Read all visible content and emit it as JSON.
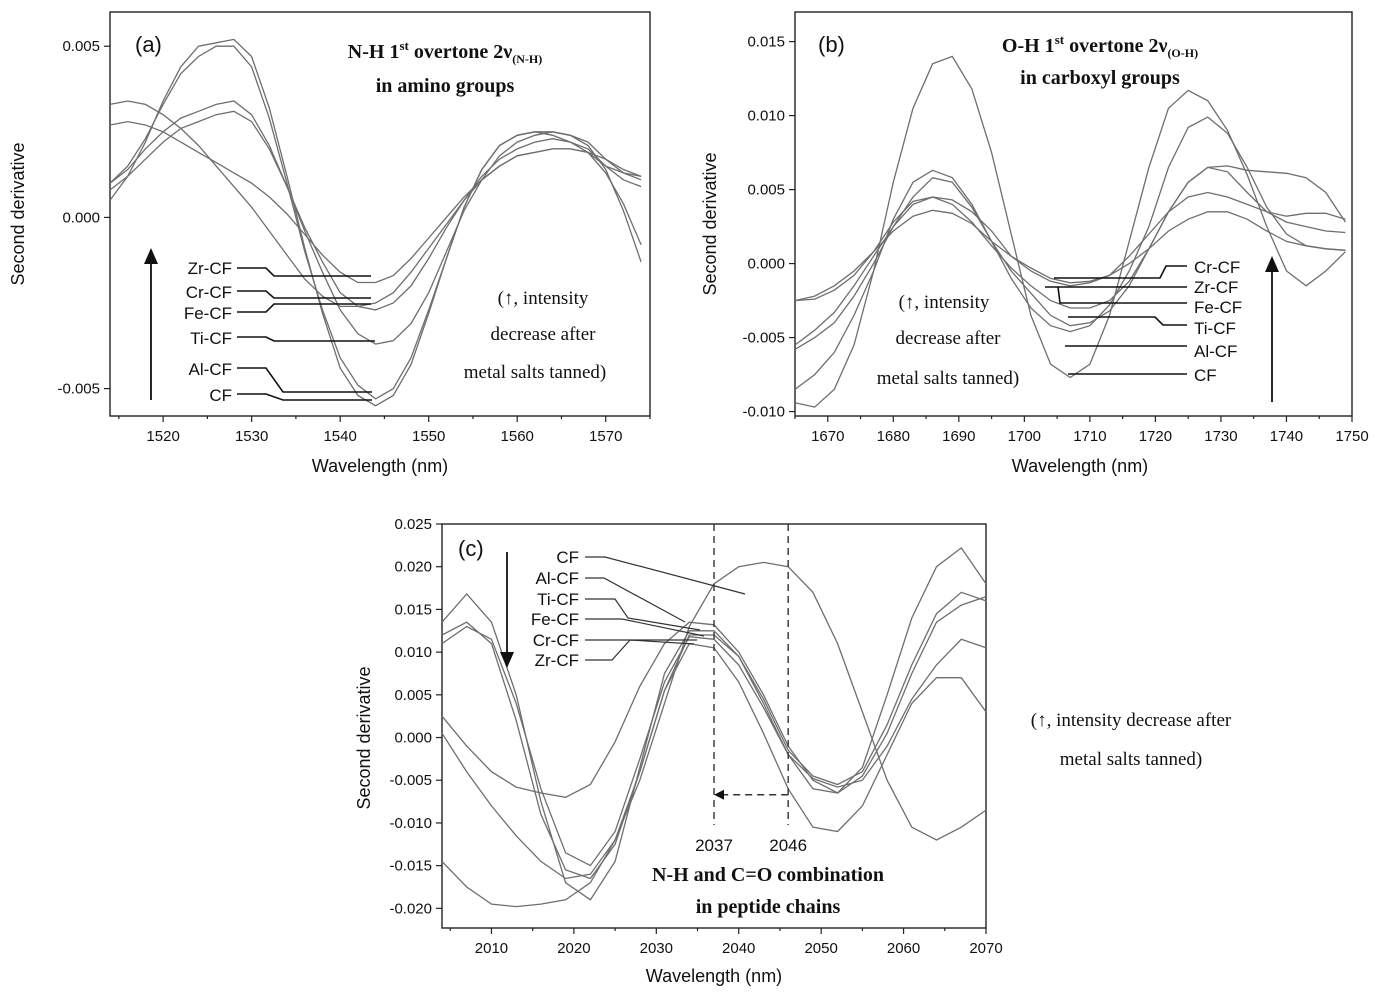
{
  "figure": {
    "tanning_note": {
      "line1": "(↑, intensity decrease after",
      "line2": "metal salts tanned)"
    }
  },
  "chart_data": [
    {
      "type": "line",
      "panel": "(a)",
      "title_lines": [
        "N-H 1st overtone 2ν(N-H)",
        "in amino groups"
      ],
      "title_main": "N-H 1",
      "title_sup": "st",
      "title_mid": " overtone 2ν",
      "title_sub": "(N-H)",
      "title_line2": "in amino groups",
      "xlabel": "Wavelength (nm)",
      "ylabel": "Second derivative",
      "xlim": [
        1514,
        1575
      ],
      "ylim": [
        -0.0058,
        0.006
      ],
      "xticks": [
        1520,
        1530,
        1540,
        1550,
        1560,
        1570
      ],
      "yticks": [
        0.005,
        0.0,
        -0.005
      ],
      "ytick_labels": [
        "0.005",
        "0.000",
        "-0.005"
      ],
      "annotation": [
        "(↑, intensity",
        "decrease after",
        "metal salts tanned)"
      ],
      "arrow_direction": "up",
      "legend_order": [
        "Zr-CF",
        "Cr-CF",
        "Fe-CF",
        "Ti-CF",
        "Al-CF",
        "CF"
      ],
      "x": [
        1514,
        1516,
        1518,
        1520,
        1522,
        1524,
        1526,
        1528,
        1530,
        1532,
        1534,
        1536,
        1538,
        1540,
        1542,
        1544,
        1546,
        1548,
        1550,
        1552,
        1554,
        1556,
        1558,
        1560,
        1562,
        1564,
        1566,
        1568,
        1570,
        1572,
        1574
      ],
      "series": [
        {
          "name": "CF",
          "values": [
            0.0005,
            0.0012,
            0.0022,
            0.0034,
            0.0044,
            0.005,
            0.0051,
            0.0052,
            0.0047,
            0.0032,
            0.0012,
            -0.0009,
            -0.0028,
            -0.0044,
            -0.0052,
            -0.0055,
            -0.0052,
            -0.0043,
            -0.0028,
            -0.0012,
            0.0003,
            0.0014,
            0.0021,
            0.0024,
            0.0025,
            0.0025,
            0.0024,
            0.0021,
            0.0014,
            0.0002,
            -0.0013
          ]
        },
        {
          "name": "Al-CF",
          "values": [
            0.001,
            0.0015,
            0.0023,
            0.0033,
            0.0042,
            0.0047,
            0.005,
            0.005,
            0.0044,
            0.0029,
            0.001,
            -0.001,
            -0.0027,
            -0.0041,
            -0.0049,
            -0.0053,
            -0.005,
            -0.0041,
            -0.0027,
            -0.0012,
            0.0003,
            0.0014,
            0.0021,
            0.0024,
            0.0025,
            0.0024,
            0.0022,
            0.0019,
            0.0013,
            0.0004,
            -0.0008
          ]
        },
        {
          "name": "Ti-CF",
          "values": [
            0.001,
            0.0014,
            0.002,
            0.0025,
            0.0029,
            0.0031,
            0.0033,
            0.0034,
            0.003,
            0.0021,
            0.0009,
            -0.0004,
            -0.0016,
            -0.0027,
            -0.0034,
            -0.0037,
            -0.0036,
            -0.0031,
            -0.0022,
            -0.001,
            0.0002,
            0.0011,
            0.0018,
            0.0022,
            0.0024,
            0.0025,
            0.0024,
            0.0022,
            0.0017,
            0.0013,
            0.0011
          ]
        },
        {
          "name": "Fe-CF",
          "values": [
            0.0008,
            0.0012,
            0.0017,
            0.0022,
            0.0026,
            0.0028,
            0.003,
            0.0031,
            0.0028,
            0.002,
            0.0009,
            -0.0003,
            -0.0013,
            -0.0022,
            -0.0026,
            -0.0027,
            -0.0025,
            -0.002,
            -0.0012,
            -0.0003,
            0.0005,
            0.0012,
            0.0017,
            0.002,
            0.0022,
            0.0023,
            0.0022,
            0.002,
            0.0015,
            0.0013,
            0.0012
          ]
        },
        {
          "name": "Cr-CF",
          "values": [
            0.0033,
            0.0034,
            0.0033,
            0.003,
            0.0026,
            0.0021,
            0.0015,
            0.0009,
            0.0003,
            -0.0004,
            -0.0011,
            -0.0018,
            -0.0023,
            -0.0026,
            -0.0026,
            -0.0025,
            -0.0022,
            -0.0016,
            -0.0009,
            -0.0002,
            0.0005,
            0.0011,
            0.0015,
            0.0018,
            0.0019,
            0.002,
            0.002,
            0.0019,
            0.0017,
            0.0014,
            0.0012
          ]
        },
        {
          "name": "Zr-CF",
          "values": [
            0.0027,
            0.0028,
            0.0027,
            0.0025,
            0.0022,
            0.0019,
            0.0016,
            0.0013,
            0.001,
            0.0006,
            0.0001,
            -0.0005,
            -0.0011,
            -0.0016,
            -0.0019,
            -0.0019,
            -0.0017,
            -0.0012,
            -0.0006,
            0.0,
            0.0006,
            0.0011,
            0.0015,
            0.0018,
            0.0019,
            0.002,
            0.002,
            0.0019,
            0.0015,
            0.0011,
            0.0009
          ]
        }
      ]
    },
    {
      "type": "line",
      "panel": "(b)",
      "title_main": "O-H 1",
      "title_sup": "st",
      "title_mid": " overtone 2ν",
      "title_sub": "(O-H)",
      "title_line2": "in carboxyl groups",
      "xlabel": "Wavelength (nm)",
      "ylabel": "Second derivative",
      "xlim": [
        1665,
        1750
      ],
      "ylim": [
        -0.0103,
        0.017
      ],
      "xticks": [
        1670,
        1680,
        1690,
        1700,
        1710,
        1720,
        1730,
        1740,
        1750
      ],
      "yticks": [
        0.015,
        0.01,
        0.005,
        0.0,
        -0.005,
        -0.01
      ],
      "ytick_labels": [
        "0.015",
        "0.010",
        "0.005",
        "0.000",
        "-0.005",
        "-0.010"
      ],
      "annotation": [
        "(↑, intensity",
        "decrease after",
        "metal salts tanned)"
      ],
      "arrow_direction": "up",
      "legend_order": [
        "Cr-CF",
        "Zr-CF",
        "Fe-CF",
        "Ti-CF",
        "Al-CF",
        "CF"
      ],
      "x": [
        1665,
        1668,
        1671,
        1674,
        1677,
        1680,
        1683,
        1686,
        1689,
        1692,
        1695,
        1698,
        1701,
        1704,
        1707,
        1710,
        1713,
        1716,
        1719,
        1722,
        1725,
        1728,
        1731,
        1734,
        1737,
        1740,
        1743,
        1746,
        1749
      ],
      "series": [
        {
          "name": "CF",
          "values": [
            -0.0094,
            -0.0097,
            -0.0085,
            -0.0055,
            -0.0005,
            0.0055,
            0.0105,
            0.0135,
            0.014,
            0.0118,
            0.0075,
            0.002,
            -0.0035,
            -0.0068,
            -0.0077,
            -0.0068,
            -0.0035,
            0.0015,
            0.0065,
            0.0105,
            0.0117,
            0.011,
            0.009,
            0.006,
            0.0025,
            -0.0005,
            -0.0015,
            -0.0005,
            0.0008
          ]
        },
        {
          "name": "Al-CF",
          "values": [
            -0.0085,
            -0.0075,
            -0.006,
            -0.0035,
            -0.0005,
            0.003,
            0.0055,
            0.0063,
            0.0058,
            0.004,
            0.0015,
            -0.001,
            -0.003,
            -0.0042,
            -0.0046,
            -0.0042,
            -0.0028,
            -0.0005,
            0.0025,
            0.0065,
            0.0092,
            0.0099,
            0.0088,
            0.0065,
            0.0038,
            0.002,
            0.0012,
            0.001,
            0.0009
          ]
        },
        {
          "name": "Ti-CF",
          "values": [
            -0.0058,
            -0.005,
            -0.004,
            -0.0022,
            0.0,
            0.0025,
            0.0045,
            0.0058,
            0.0055,
            0.0038,
            0.0015,
            -0.0005,
            -0.002,
            -0.0035,
            -0.0042,
            -0.004,
            -0.0032,
            -0.0015,
            0.001,
            0.0035,
            0.0055,
            0.0065,
            0.0062,
            0.0048,
            0.0035,
            0.0028,
            0.0025,
            0.0022,
            0.0021
          ]
        },
        {
          "name": "Fe-CF",
          "values": [
            -0.0055,
            -0.0045,
            -0.0033,
            -0.0015,
            0.0005,
            0.0025,
            0.004,
            0.0045,
            0.004,
            0.0028,
            0.0012,
            -0.0003,
            -0.0015,
            -0.0025,
            -0.003,
            -0.003,
            -0.0025,
            -0.0012,
            0.001,
            0.0035,
            0.0055,
            0.0065,
            0.0066,
            0.0063,
            0.0062,
            0.0061,
            0.0058,
            0.0048,
            0.0028
          ]
        },
        {
          "name": "Cr-CF",
          "values": [
            -0.0025,
            -0.0024,
            -0.0018,
            -0.0008,
            0.0008,
            0.0028,
            0.0042,
            0.0045,
            0.0043,
            0.0035,
            0.0022,
            0.0005,
            -0.0005,
            -0.0012,
            -0.0015,
            -0.0013,
            -0.0008,
            0.0005,
            0.002,
            0.0035,
            0.0045,
            0.0048,
            0.0045,
            0.004,
            0.0035,
            0.0032,
            0.0034,
            0.0034,
            0.003
          ]
        },
        {
          "name": "Zr-CF",
          "values": [
            -0.0025,
            -0.0022,
            -0.0015,
            -0.0005,
            0.0008,
            0.0022,
            0.0032,
            0.0036,
            0.0034,
            0.0027,
            0.0015,
            0.0005,
            -0.0003,
            -0.001,
            -0.0013,
            -0.0012,
            -0.0008,
            0.0,
            0.001,
            0.0022,
            0.003,
            0.0035,
            0.0035,
            0.003,
            0.0022,
            0.0015,
            0.0012,
            0.001,
            0.0009
          ]
        }
      ]
    },
    {
      "type": "line",
      "panel": "(c)",
      "title_line1": "N-H and C=O combination",
      "title_line2": "in peptide chains",
      "xlabel": "Wavelength (nm)",
      "ylabel": "Second derivative",
      "xlim": [
        2004,
        2070
      ],
      "ylim": [
        -0.0223,
        0.025
      ],
      "xticks": [
        2010,
        2020,
        2030,
        2040,
        2050,
        2060,
        2070
      ],
      "yticks": [
        0.025,
        0.02,
        0.015,
        0.01,
        0.005,
        0.0,
        -0.005,
        -0.01,
        -0.015,
        -0.02
      ],
      "ytick_labels": [
        "0.025",
        "0.020",
        "0.015",
        "0.010",
        "0.005",
        "0.000",
        "-0.005",
        "-0.010",
        "-0.015",
        "-0.020"
      ],
      "markers": [
        {
          "x": 2037,
          "label": "2037"
        },
        {
          "x": 2046,
          "label": "2046"
        }
      ],
      "shift_arrow": {
        "from": 2046,
        "to": 2037,
        "y": -0.0067
      },
      "arrow_direction": "down",
      "legend_order": [
        "CF",
        "Al-CF",
        "Ti-CF",
        "Fe-CF",
        "Cr-CF",
        "Zr-CF"
      ],
      "x": [
        2004,
        2007,
        2010,
        2013,
        2016,
        2019,
        2022,
        2025,
        2028,
        2031,
        2034,
        2037,
        2040,
        2043,
        2046,
        2049,
        2052,
        2055,
        2058,
        2061,
        2064,
        2067,
        2070
      ],
      "series": [
        {
          "name": "CF",
          "values": [
            -0.0145,
            -0.0175,
            -0.0195,
            -0.0198,
            -0.0195,
            -0.019,
            -0.017,
            -0.012,
            -0.005,
            0.004,
            0.013,
            0.018,
            0.02,
            0.0205,
            0.02,
            0.017,
            0.011,
            0.003,
            -0.005,
            -0.0105,
            -0.012,
            -0.0105,
            -0.0085
          ]
        },
        {
          "name": "Al-CF",
          "values": [
            0.0005,
            -0.004,
            -0.008,
            -0.0115,
            -0.0145,
            -0.0165,
            -0.016,
            -0.012,
            -0.004,
            0.0055,
            0.011,
            0.0105,
            0.0065,
            0.0005,
            -0.006,
            -0.0105,
            -0.011,
            -0.008,
            -0.002,
            0.004,
            0.007,
            0.007,
            0.003
          ]
        },
        {
          "name": "Ti-CF",
          "values": [
            0.0025,
            -0.001,
            -0.004,
            -0.0058,
            -0.0065,
            -0.007,
            -0.0055,
            -0.0005,
            0.006,
            0.011,
            0.0135,
            0.0132,
            0.01,
            0.005,
            -0.001,
            -0.005,
            -0.0065,
            -0.0045,
            0.0005,
            0.0075,
            0.0135,
            0.0155,
            0.0165
          ]
        },
        {
          "name": "Fe-CF",
          "values": [
            0.012,
            0.0135,
            0.011,
            0.002,
            -0.009,
            -0.0155,
            -0.0165,
            -0.0125,
            -0.004,
            0.0055,
            0.012,
            0.012,
            0.0095,
            0.0045,
            -0.0015,
            -0.0045,
            -0.0055,
            -0.004,
            0.0015,
            0.0085,
            0.0145,
            0.017,
            0.016
          ]
        },
        {
          "name": "Cr-CF",
          "values": [
            0.011,
            0.013,
            0.0115,
            0.004,
            -0.006,
            -0.0135,
            -0.015,
            -0.011,
            -0.0025,
            0.0065,
            0.0118,
            0.0115,
            0.0085,
            0.0035,
            -0.002,
            -0.0048,
            -0.0058,
            -0.005,
            -0.001,
            0.0045,
            0.0085,
            0.0115,
            0.0105
          ]
        },
        {
          "name": "Zr-CF",
          "values": [
            0.0135,
            0.0168,
            0.0135,
            0.005,
            -0.0075,
            -0.017,
            -0.019,
            -0.0145,
            -0.0035,
            0.0075,
            0.0125,
            0.0125,
            0.0095,
            0.004,
            -0.002,
            -0.006,
            -0.0065,
            -0.0035,
            0.005,
            0.014,
            0.02,
            0.0222,
            0.018
          ]
        }
      ]
    }
  ]
}
